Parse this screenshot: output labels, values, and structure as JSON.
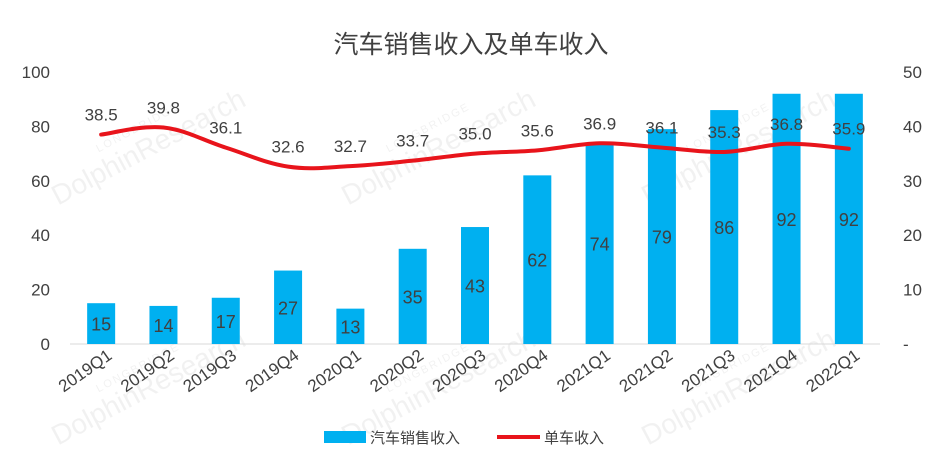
{
  "chart_data": {
    "type": "bar+line",
    "title": "汽车销售收入及单车收入",
    "categories": [
      "2019Q1",
      "2019Q2",
      "2019Q3",
      "2019Q4",
      "2020Q1",
      "2020Q2",
      "2020Q3",
      "2020Q4",
      "2021Q1",
      "2021Q2",
      "2021Q3",
      "2021Q4",
      "2022Q1"
    ],
    "series": [
      {
        "name": "汽车销售收入",
        "type": "bar",
        "axis": "left",
        "color": "#00B0F0",
        "values": [
          15,
          14,
          17,
          27,
          13,
          35,
          43,
          62,
          74,
          79,
          86,
          92,
          92
        ],
        "labels": [
          "15",
          "14",
          "17",
          "27",
          "13",
          "35",
          "43",
          "62",
          "74",
          "79",
          "86",
          "92",
          "92"
        ]
      },
      {
        "name": "单车收入",
        "type": "line",
        "axis": "right",
        "color": "#E8141B",
        "values": [
          38.5,
          39.8,
          36.1,
          32.6,
          32.7,
          33.7,
          35.0,
          35.6,
          36.9,
          36.1,
          35.3,
          36.8,
          35.9
        ],
        "labels": [
          "38.5",
          "39.8",
          "36.1",
          "32.6",
          "32.7",
          "33.7",
          "35.0",
          "35.6",
          "36.9",
          "36.1",
          "35.3",
          "36.8",
          "35.9"
        ]
      }
    ],
    "y_left": {
      "range": [
        0,
        100
      ],
      "ticks": [
        "0",
        "20",
        "40",
        "60",
        "80",
        "100"
      ]
    },
    "y_right": {
      "range": [
        0,
        50
      ],
      "ticks": [
        "-",
        "10",
        "20",
        "30",
        "40",
        "50"
      ]
    },
    "legend": {
      "position": "bottom",
      "items": [
        "汽车销售收入",
        "单车收入"
      ]
    },
    "watermark": "LONGBRIDGE DolphinResearch",
    "grid": false
  }
}
